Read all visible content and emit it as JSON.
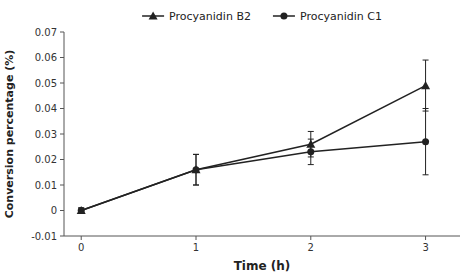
{
  "chart_data": {
    "type": "line",
    "x": [
      0,
      1,
      2,
      3
    ],
    "series": [
      {
        "name": "Procyanidin B2",
        "color": "#222222",
        "marker": "triangle",
        "values": [
          0.0,
          0.016,
          0.026,
          0.049
        ],
        "errors": [
          0.001,
          0.006,
          0.005,
          0.01
        ]
      },
      {
        "name": "Procyanidin C1",
        "color": "#222222",
        "marker": "circle",
        "values": [
          0.0,
          0.016,
          0.023,
          0.027
        ],
        "errors": [
          0.001,
          0.006,
          0.005,
          0.013
        ]
      }
    ],
    "xlabel": "Time (h)",
    "ylabel": "Conversion percentage (%)",
    "xlim": [
      -0.15,
      3.3
    ],
    "ylim": [
      -0.01,
      0.07
    ],
    "xticks": [
      0,
      1,
      2,
      3
    ],
    "yticks": [
      -0.01,
      0,
      0.01,
      0.02,
      0.03,
      0.04,
      0.05,
      0.06,
      0.07
    ],
    "grid": false,
    "legend": "top"
  }
}
